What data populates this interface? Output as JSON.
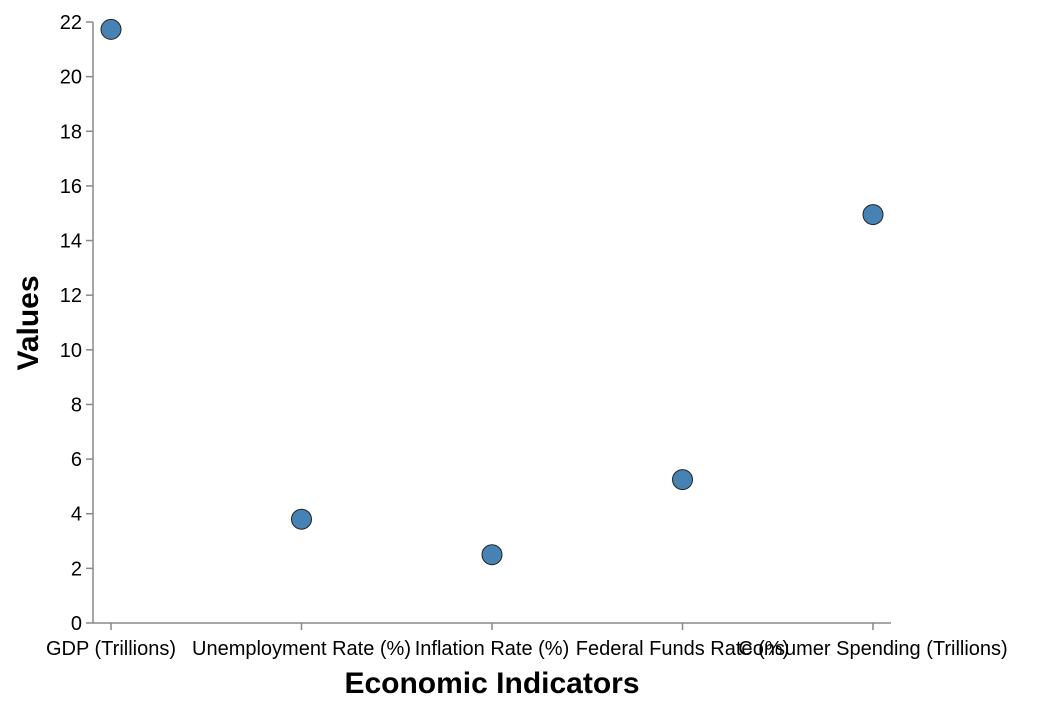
{
  "chart_data": {
    "type": "scatter",
    "categories": [
      "GDP (Trillions)",
      "Unemployment Rate (%)",
      "Inflation Rate (%)",
      "Federal Funds Rate (%)",
      "Consumer Spending (Trillions)"
    ],
    "values": [
      21.73,
      3.8,
      2.5,
      5.25,
      14.95
    ],
    "title": "",
    "xlabel": "Economic Indicators",
    "ylabel": "Values",
    "ylim": [
      0,
      22
    ],
    "yticks": [
      0,
      2,
      4,
      6,
      8,
      10,
      12,
      14,
      16,
      18,
      20,
      22
    ],
    "grid": false,
    "legend": "none",
    "point_color": "#4682b4",
    "point_stroke": "#222222"
  }
}
